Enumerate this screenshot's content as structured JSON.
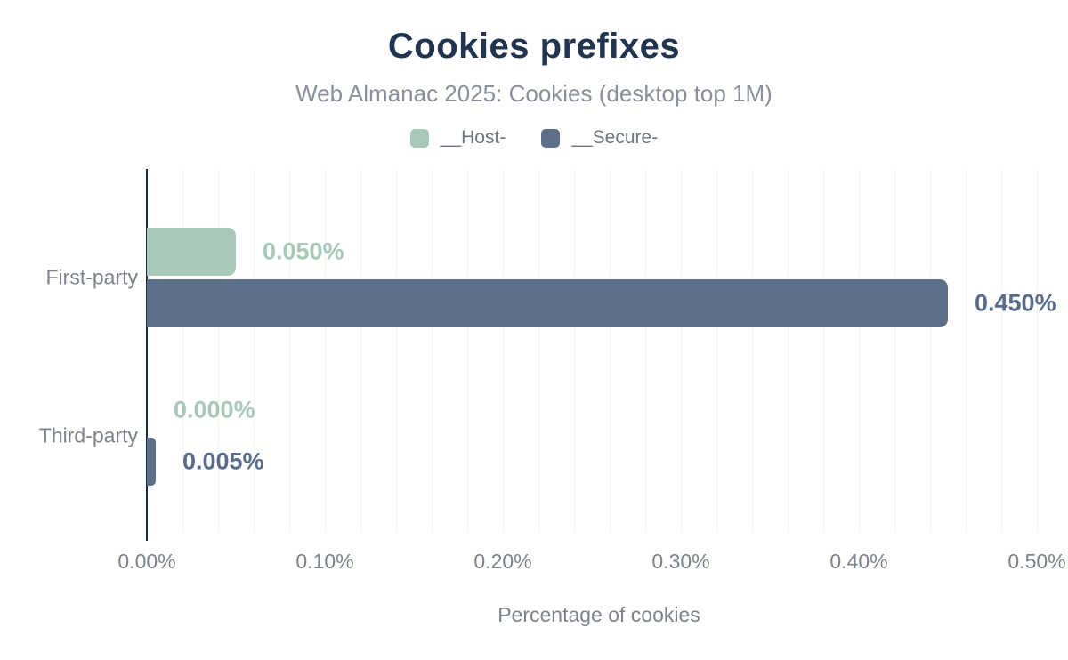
{
  "chart_data": {
    "type": "bar",
    "orientation": "horizontal",
    "title": "Cookies prefixes",
    "subtitle": "Web Almanac 2025: Cookies (desktop top 1M)",
    "xlabel": "Percentage of cookies",
    "ylabel": "",
    "categories": [
      "First-party",
      "Third-party"
    ],
    "series": [
      {
        "name": "__Host-",
        "color": "#a8c9b8",
        "label_color": "#a8c9b8",
        "values": [
          0.05,
          0.0
        ],
        "value_labels": [
          "0.050%",
          "0.000%"
        ]
      },
      {
        "name": "__Secure-",
        "color": "#5e7089",
        "label_color": "#5a6c8c",
        "values": [
          0.45,
          0.005
        ],
        "value_labels": [
          "0.450%",
          "0.005%"
        ]
      }
    ],
    "x_ticks": [
      "0.00%",
      "0.10%",
      "0.20%",
      "0.30%",
      "0.40%",
      "0.50%"
    ],
    "xlim": [
      0,
      0.508
    ],
    "grid": {
      "vertical": true,
      "minor_step_percent": 0.02
    },
    "legend_position": "top"
  },
  "colors": {
    "title": "#213450",
    "axis_line": "#1a2b49",
    "text_gray": "#7d828b",
    "subtitle_gray": "#8b909a",
    "legend_text": "#6f7681",
    "gridline": "#f1f2f3",
    "background": "#ffffff"
  }
}
